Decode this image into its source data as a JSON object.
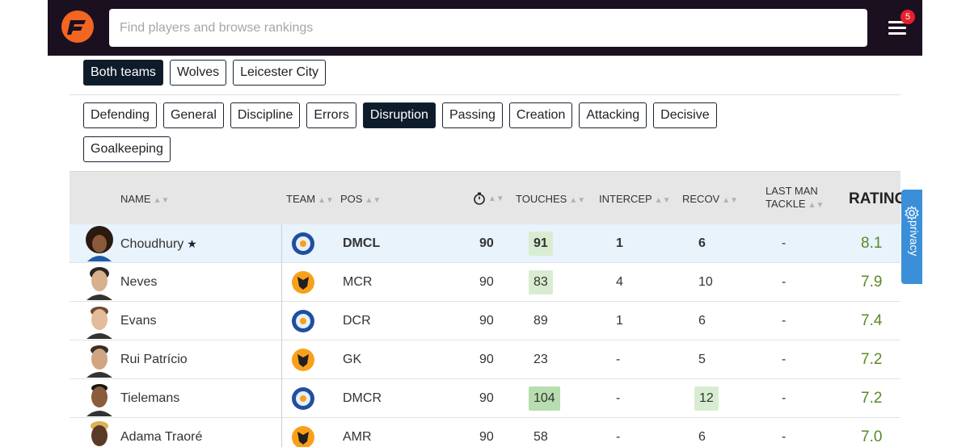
{
  "header": {
    "search_placeholder": "Find players and browse rankings",
    "notification_count": "5"
  },
  "team_filters": [
    {
      "label": "Both teams",
      "active": true
    },
    {
      "label": "Wolves",
      "active": false
    },
    {
      "label": "Leicester City",
      "active": false
    }
  ],
  "category_tabs": [
    {
      "label": "Defending",
      "active": false
    },
    {
      "label": "General",
      "active": false
    },
    {
      "label": "Discipline",
      "active": false
    },
    {
      "label": "Errors",
      "active": false
    },
    {
      "label": "Disruption",
      "active": true
    },
    {
      "label": "Passing",
      "active": false
    },
    {
      "label": "Creation",
      "active": false
    },
    {
      "label": "Attacking",
      "active": false
    },
    {
      "label": "Decisive",
      "active": false
    },
    {
      "label": "Goalkeeping",
      "active": false
    }
  ],
  "table": {
    "columns": {
      "name": "NAME",
      "team": "TEAM",
      "pos": "POS",
      "touches": "TOUCHES",
      "intercep": "INTERCEP",
      "recov": "RECOV",
      "last_man_line1": "LAST MAN",
      "last_man_line2": "TACKLE",
      "rating": "RATING"
    },
    "rows": [
      {
        "name": "Choudhury",
        "team": "leicester",
        "pos": "DMCL",
        "mins": "90",
        "touches": "91",
        "intercep": "1",
        "recov": "6",
        "last_man": "-",
        "rating": "8.1",
        "star": true,
        "highlight": true
      },
      {
        "name": "Neves",
        "team": "wolves",
        "pos": "MCR",
        "mins": "90",
        "touches": "83",
        "intercep": "4",
        "recov": "10",
        "last_man": "-",
        "rating": "7.9"
      },
      {
        "name": "Evans",
        "team": "leicester",
        "pos": "DCR",
        "mins": "90",
        "touches": "89",
        "intercep": "1",
        "recov": "6",
        "last_man": "-",
        "rating": "7.4"
      },
      {
        "name": "Rui Patrício",
        "team": "wolves",
        "pos": "GK",
        "mins": "90",
        "touches": "23",
        "intercep": "-",
        "recov": "5",
        "last_man": "-",
        "rating": "7.2"
      },
      {
        "name": "Tielemans",
        "team": "leicester",
        "pos": "DMCR",
        "mins": "90",
        "touches": "104",
        "intercep": "-",
        "recov": "12",
        "last_man": "-",
        "rating": "7.2"
      },
      {
        "name": "Adama Traoré",
        "team": "wolves",
        "pos": "AMR",
        "mins": "90",
        "touches": "58",
        "intercep": "-",
        "recov": "6",
        "last_man": "-",
        "rating": "7.0"
      }
    ]
  },
  "privacy_label": "privacy",
  "colors": {
    "header_bg": "#1a1020",
    "active_chip": "#0d1b2a",
    "rating_green": "#5a8a25",
    "privacy_blue": "#3b8fd9",
    "highlight_row": "#e8f3fc"
  }
}
